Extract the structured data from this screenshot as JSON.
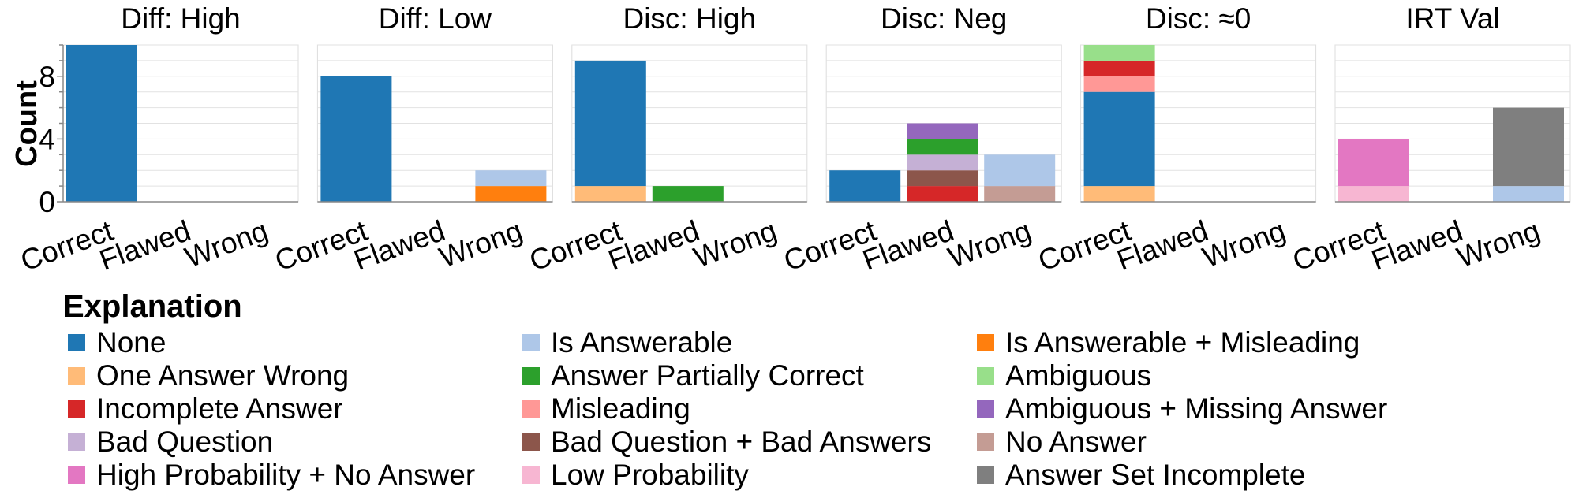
{
  "chart_data": {
    "type": "bar",
    "stacked": true,
    "ylabel": "Count",
    "ylim": [
      0,
      10
    ],
    "yticks": [
      0,
      4,
      8
    ],
    "grid": true,
    "categories": [
      "Correct",
      "Flawed",
      "Wrong"
    ],
    "legend_title": "Explanation",
    "legend_position": "bottom",
    "legend": [
      {
        "name": "None",
        "color": "#1f77b4"
      },
      {
        "name": "One Answer Wrong",
        "color": "#ffbb78"
      },
      {
        "name": "Incomplete Answer",
        "color": "#d62728"
      },
      {
        "name": "Bad Question",
        "color": "#c5b0d5"
      },
      {
        "name": "High Probability + No Answer",
        "color": "#e377c2"
      },
      {
        "name": "Is Answerable",
        "color": "#aec7e8"
      },
      {
        "name": "Answer Partially Correct",
        "color": "#2ca02c"
      },
      {
        "name": "Misleading",
        "color": "#ff9896"
      },
      {
        "name": "Bad Question + Bad Answers",
        "color": "#8c564b"
      },
      {
        "name": "Low Probability",
        "color": "#f7b6d2"
      },
      {
        "name": "Is Answerable + Misleading",
        "color": "#ff7f0e"
      },
      {
        "name": "Ambiguous",
        "color": "#98df8a"
      },
      {
        "name": "Ambiguous + Missing Answer",
        "color": "#9467bd"
      },
      {
        "name": "No Answer",
        "color": "#c49c94"
      },
      {
        "name": "Answer Set Incomplete",
        "color": "#7f7f7f"
      }
    ],
    "panels": [
      {
        "title": "Diff: High",
        "bars": {
          "Correct": [
            {
              "label": "None",
              "value": 10
            }
          ],
          "Flawed": [],
          "Wrong": []
        }
      },
      {
        "title": "Diff: Low",
        "bars": {
          "Correct": [
            {
              "label": "None",
              "value": 8
            }
          ],
          "Flawed": [],
          "Wrong": [
            {
              "label": "Is Answerable + Misleading",
              "value": 1
            },
            {
              "label": "Is Answerable",
              "value": 1
            }
          ]
        }
      },
      {
        "title": "Disc: High",
        "bars": {
          "Correct": [
            {
              "label": "One Answer Wrong",
              "value": 1
            },
            {
              "label": "None",
              "value": 8
            }
          ],
          "Flawed": [
            {
              "label": "Answer Partially Correct",
              "value": 1
            }
          ],
          "Wrong": []
        }
      },
      {
        "title": "Disc: Neg",
        "bars": {
          "Correct": [
            {
              "label": "None",
              "value": 2
            }
          ],
          "Flawed": [
            {
              "label": "Incomplete Answer",
              "value": 1
            },
            {
              "label": "Bad Question + Bad Answers",
              "value": 1
            },
            {
              "label": "Bad Question",
              "value": 1
            },
            {
              "label": "Answer Partially Correct",
              "value": 1
            },
            {
              "label": "Ambiguous + Missing Answer",
              "value": 1
            }
          ],
          "Wrong": [
            {
              "label": "No Answer",
              "value": 1
            },
            {
              "label": "Is Answerable",
              "value": 2
            }
          ]
        }
      },
      {
        "title": "Disc: ≈0",
        "bars": {
          "Correct": [
            {
              "label": "One Answer Wrong",
              "value": 1
            },
            {
              "label": "None",
              "value": 6
            },
            {
              "label": "Misleading",
              "value": 1
            },
            {
              "label": "Incomplete Answer",
              "value": 1
            },
            {
              "label": "Ambiguous",
              "value": 1
            }
          ],
          "Flawed": [],
          "Wrong": []
        }
      },
      {
        "title": "IRT Val",
        "bars": {
          "Correct": [
            {
              "label": "Low Probability",
              "value": 1
            },
            {
              "label": "High Probability + No Answer",
              "value": 3
            }
          ],
          "Flawed": [],
          "Wrong": [
            {
              "label": "Is Answerable",
              "value": 1
            },
            {
              "label": "Answer Set Incomplete",
              "value": 5
            }
          ]
        }
      }
    ]
  }
}
